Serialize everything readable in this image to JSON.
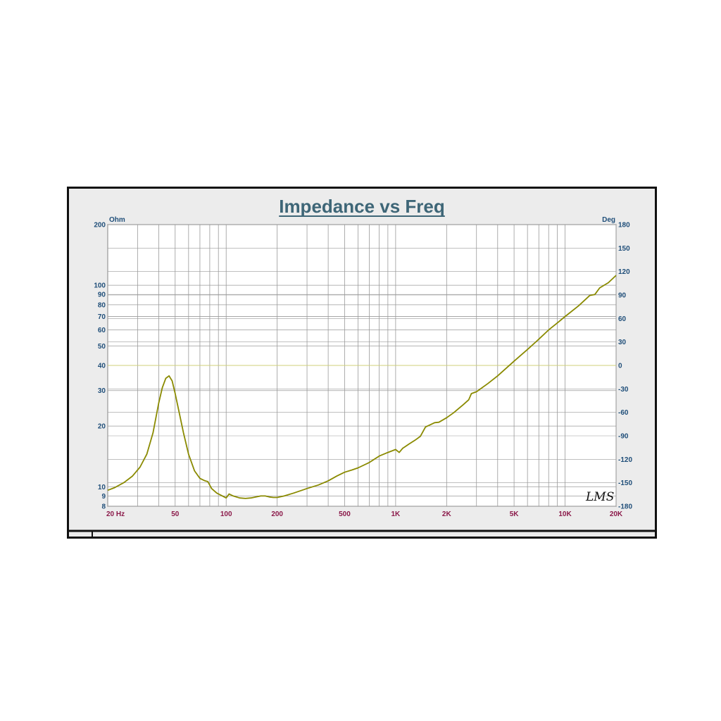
{
  "chart_data": {
    "type": "line",
    "title": "Impedance vs Freq",
    "y_unit_left": "Ohm",
    "y_unit_right": "Deg",
    "x_scale": "log",
    "y_scale": "log",
    "xlim": [
      20,
      20000
    ],
    "ylim": [
      8,
      200
    ],
    "y2lim": [
      -180,
      180
    ],
    "grid": true,
    "x_tick_labels": [
      {
        "v": 20,
        "label": "20  Hz"
      },
      {
        "v": 50,
        "label": "50"
      },
      {
        "v": 100,
        "label": "100"
      },
      {
        "v": 200,
        "label": "200"
      },
      {
        "v": 500,
        "label": "500"
      },
      {
        "v": 1000,
        "label": "1K"
      },
      {
        "v": 2000,
        "label": "2K"
      },
      {
        "v": 5000,
        "label": "5K"
      },
      {
        "v": 10000,
        "label": "10K"
      },
      {
        "v": 20000,
        "label": "20K"
      }
    ],
    "y_tick_labels": [
      {
        "v": 200,
        "label": "200"
      },
      {
        "v": 100,
        "label": "100"
      },
      {
        "v": 90,
        "label": "90"
      },
      {
        "v": 80,
        "label": "80"
      },
      {
        "v": 70,
        "label": "70"
      },
      {
        "v": 60,
        "label": "60"
      },
      {
        "v": 50,
        "label": "50"
      },
      {
        "v": 40,
        "label": "40"
      },
      {
        "v": 30,
        "label": "30"
      },
      {
        "v": 20,
        "label": "20"
      },
      {
        "v": 10,
        "label": "10"
      },
      {
        "v": 9,
        "label": "9"
      },
      {
        "v": 8,
        "label": "8"
      }
    ],
    "y2_tick_labels": [
      {
        "v": 180,
        "label": "180"
      },
      {
        "v": 150,
        "label": "150"
      },
      {
        "v": 120,
        "label": "120"
      },
      {
        "v": 90,
        "label": "90"
      },
      {
        "v": 60,
        "label": "60"
      },
      {
        "v": 30,
        "label": "30"
      },
      {
        "v": 0,
        "label": "0"
      },
      {
        "v": -30,
        "label": "-30"
      },
      {
        "v": -60,
        "label": "-60"
      },
      {
        "v": -90,
        "label": "-90"
      },
      {
        "v": -120,
        "label": "-120"
      },
      {
        "v": -150,
        "label": "-150"
      },
      {
        "v": -180,
        "label": "-180"
      }
    ],
    "series": [
      {
        "color": "#8a8a00",
        "x": [
          20,
          22,
          25,
          28,
          31,
          34,
          37,
          40,
          42,
          44,
          46,
          48,
          50,
          53,
          56,
          60,
          65,
          70,
          75,
          78,
          82,
          88,
          95,
          100,
          104,
          110,
          120,
          130,
          140,
          150,
          160,
          170,
          180,
          190,
          200,
          220,
          250,
          280,
          300,
          350,
          400,
          450,
          500,
          550,
          600,
          700,
          800,
          900,
          1000,
          1050,
          1100,
          1200,
          1300,
          1400,
          1500,
          1600,
          1700,
          1800,
          2000,
          2200,
          2500,
          2700,
          2800,
          3000,
          3500,
          4000,
          5000,
          6000,
          7000,
          8000,
          9000,
          10000,
          12000,
          14000,
          15000,
          16000,
          18000,
          20000
        ],
        "y": [
          9.6,
          9.9,
          10.5,
          11.3,
          12.5,
          14.5,
          18.5,
          26,
          31,
          34.5,
          35.5,
          33.5,
          29,
          23,
          18.5,
          14.5,
          12,
          11,
          10.7,
          10.6,
          9.8,
          9.3,
          9.0,
          8.8,
          9.2,
          9.0,
          8.8,
          8.75,
          8.8,
          8.9,
          9.0,
          9.0,
          8.9,
          8.85,
          8.85,
          9.0,
          9.3,
          9.6,
          9.8,
          10.2,
          10.7,
          11.3,
          11.8,
          12.1,
          12.4,
          13.2,
          14.2,
          14.8,
          15.3,
          14.8,
          15.5,
          16.3,
          17.0,
          17.8,
          19.8,
          20.3,
          20.8,
          20.9,
          22.0,
          23.3,
          25.5,
          27.0,
          29.0,
          29.6,
          32.5,
          35.5,
          42,
          48,
          54,
          60,
          65,
          70,
          79,
          89,
          90,
          97,
          103,
          112
        ]
      }
    ]
  },
  "watermark": "LMS"
}
